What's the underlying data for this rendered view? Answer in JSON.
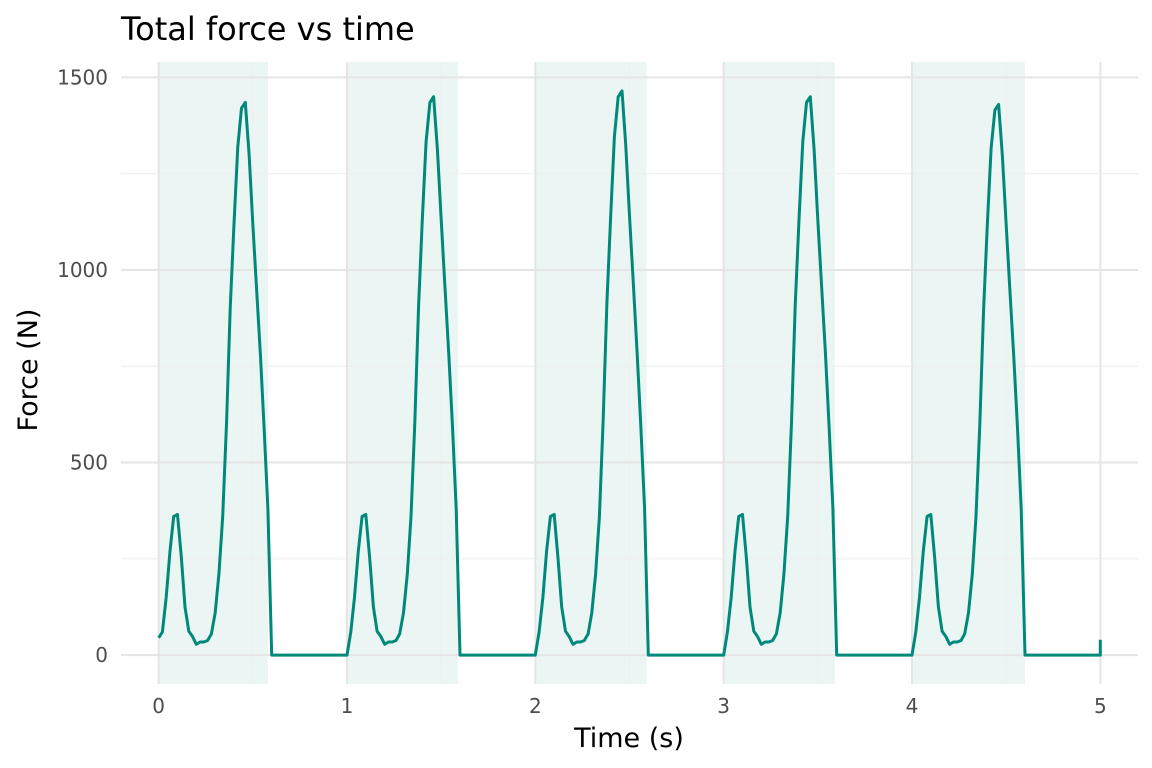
{
  "chart_data": {
    "type": "line",
    "title": "Total force vs time",
    "xlabel": "Time (s)",
    "ylabel": "Force (N)",
    "xlim": [
      -0.2,
      5.2
    ],
    "ylim": [
      -75,
      1540
    ],
    "x_ticks": [
      0,
      1,
      2,
      3,
      4,
      5
    ],
    "x_minor_ticks": [
      0.5,
      1.5,
      2.5,
      3.5,
      4.5
    ],
    "y_ticks": [
      0,
      500,
      1000,
      1500
    ],
    "y_minor_ticks": [
      250,
      750,
      1250
    ],
    "grid": true,
    "line_color": "#00897b",
    "shade_color": "#e6f3f1",
    "shaded_intervals": [
      [
        0,
        0.58
      ],
      [
        1,
        1.59
      ],
      [
        2,
        2.59
      ],
      [
        3,
        3.59
      ],
      [
        4,
        4.6
      ]
    ],
    "base_step": {
      "x": [
        0.0,
        0.02,
        0.04,
        0.06,
        0.08,
        0.1,
        0.12,
        0.14,
        0.16,
        0.18,
        0.2,
        0.22,
        0.24,
        0.26,
        0.28,
        0.3,
        0.32,
        0.34,
        0.36,
        0.38,
        0.4,
        0.42,
        0.44,
        0.46,
        0.48,
        0.5,
        0.52,
        0.54,
        0.56,
        0.58,
        0.6,
        1.0
      ],
      "y": [
        45,
        60,
        150,
        270,
        360,
        365,
        255,
        125,
        62,
        48,
        28,
        34,
        34,
        38,
        55,
        110,
        210,
        360,
        600,
        900,
        1120,
        1320,
        1420,
        1435,
        1300,
        1120,
        950,
        780,
        590,
        380,
        0,
        0
      ]
    },
    "peaks": [
      1435,
      1450,
      1465,
      1450,
      1430
    ],
    "end_point": [
      5.0,
      40
    ]
  },
  "title": "Total force vs time",
  "xlabel": "Time (s)",
  "ylabel": "Force (N)"
}
